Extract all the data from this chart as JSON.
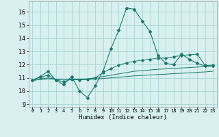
{
  "title": "",
  "xlabel": "Humidex (Indice chaleur)",
  "bg_color": "#d8f0f0",
  "grid_color": "#aad4d4",
  "line_color": "#1a7a6e",
  "x_ticks": [
    0,
    1,
    2,
    3,
    4,
    5,
    6,
    7,
    8,
    9,
    10,
    11,
    12,
    13,
    14,
    15,
    16,
    17,
    18,
    19,
    20,
    21,
    22,
    23
  ],
  "y_ticks": [
    9,
    10,
    11,
    12,
    13,
    14,
    15,
    16
  ],
  "xlim": [
    -0.5,
    23.5
  ],
  "ylim": [
    8.8,
    16.8
  ],
  "series": {
    "main": [
      10.8,
      11.1,
      11.5,
      10.8,
      10.5,
      11.1,
      10.0,
      9.5,
      10.4,
      11.5,
      13.2,
      14.6,
      16.3,
      16.2,
      15.3,
      14.5,
      12.7,
      12.1,
      12.0,
      12.8,
      12.4,
      12.1,
      11.9,
      11.9
    ],
    "line2": [
      10.8,
      11.05,
      11.2,
      10.85,
      10.7,
      10.9,
      10.85,
      10.9,
      11.0,
      11.4,
      11.7,
      11.95,
      12.15,
      12.25,
      12.35,
      12.4,
      12.5,
      12.5,
      12.6,
      12.7,
      12.75,
      12.8,
      11.95,
      11.95
    ],
    "line3": [
      10.8,
      10.9,
      11.0,
      10.9,
      10.85,
      10.9,
      10.9,
      10.92,
      11.0,
      11.1,
      11.2,
      11.3,
      11.4,
      11.5,
      11.55,
      11.6,
      11.65,
      11.68,
      11.72,
      11.75,
      11.78,
      11.82,
      11.85,
      11.9
    ],
    "line4": [
      10.8,
      10.87,
      10.93,
      10.88,
      10.84,
      10.86,
      10.86,
      10.87,
      10.9,
      10.95,
      11.0,
      11.05,
      11.1,
      11.15,
      11.18,
      11.22,
      11.25,
      11.28,
      11.32,
      11.35,
      11.38,
      11.42,
      11.45,
      11.5
    ]
  }
}
